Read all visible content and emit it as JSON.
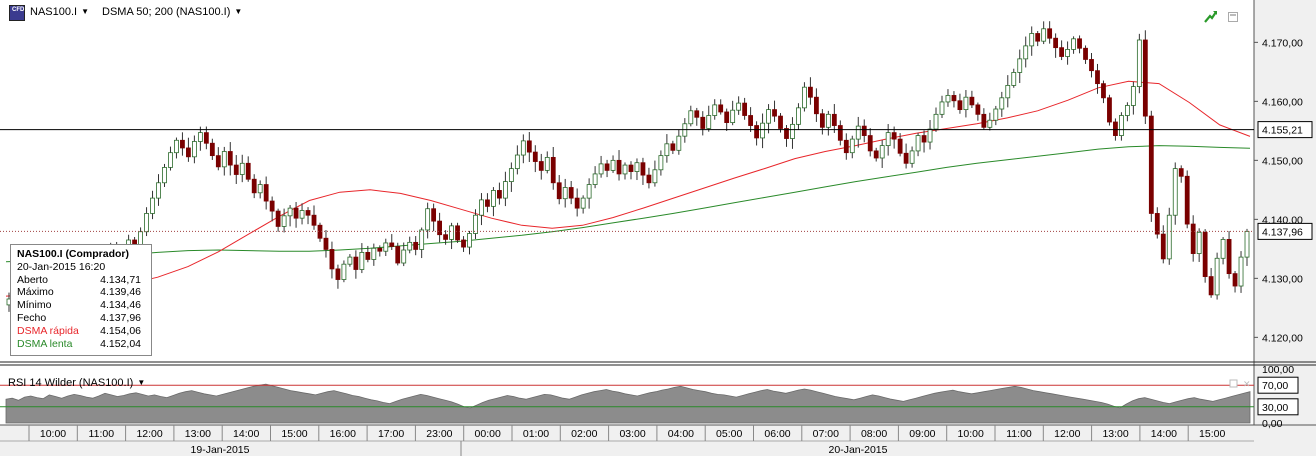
{
  "toolbar": {
    "symbol_icon": "cfd-symbol-icon",
    "symbol": "NAS100.I",
    "indicator": "DSMA 50; 200 (NAS100.I)",
    "corner_icons": [
      "trend-arrow-icon",
      "maximize-icon"
    ]
  },
  "info_box": {
    "title": "NAS100.I (Comprador)",
    "datetime": "20-Jan-2015 16:20",
    "rows": [
      {
        "label": "Aberto",
        "value": "4.134,71"
      },
      {
        "label": "Máximo",
        "value": "4.139,46"
      },
      {
        "label": "Mínimo",
        "value": "4.134,46"
      },
      {
        "label": "Fecho",
        "value": "4.137,96"
      }
    ],
    "fast_label": "DSMA rápida",
    "fast_value": "4.154,06",
    "slow_label": "DSMA lenta",
    "slow_value": "4.152,04"
  },
  "rsi": {
    "label": "RSI 14 Wilder (NAS100.I)",
    "ticks": [
      "100,00",
      "70,00",
      "30,00",
      "0,00"
    ],
    "upper_level": 70,
    "lower_level": 30,
    "series": [
      44,
      46,
      42,
      48,
      50,
      47,
      45,
      52,
      49,
      46,
      50,
      53,
      51,
      48,
      46,
      50,
      55,
      52,
      49,
      51,
      54,
      56,
      53,
      50,
      52,
      49,
      47,
      51,
      55,
      58,
      60,
      57,
      54,
      52,
      50,
      53,
      56,
      59,
      62,
      65,
      68,
      70,
      72,
      69,
      66,
      63,
      60,
      58,
      56,
      54,
      52,
      55,
      58,
      60,
      57,
      54,
      51,
      49,
      46,
      43,
      41,
      38,
      36,
      40,
      44,
      47,
      50,
      53,
      51,
      48,
      45,
      42,
      39,
      35,
      30,
      28,
      33,
      38,
      42,
      45,
      48,
      51,
      49,
      46,
      44,
      47,
      50,
      53,
      52,
      49,
      46,
      44,
      48,
      52,
      55,
      58,
      60,
      62,
      59,
      57,
      54,
      52,
      50,
      53,
      56,
      58,
      61,
      63,
      66,
      68,
      65,
      62,
      60,
      58,
      55,
      53,
      52,
      50,
      48,
      51,
      54,
      57,
      60,
      62,
      59,
      57,
      55,
      58,
      61,
      63,
      61,
      58,
      55,
      52,
      49,
      47,
      45,
      43,
      46,
      49,
      52,
      50,
      47,
      44,
      42,
      40,
      43,
      46,
      49,
      52,
      55,
      57,
      59,
      61,
      58,
      56,
      54,
      56,
      58,
      60,
      62,
      64,
      66,
      68,
      66,
      63,
      60,
      58,
      56,
      54,
      52,
      50,
      48,
      46,
      44,
      42,
      40,
      38,
      35,
      31,
      28,
      35,
      41,
      45,
      47,
      44,
      41,
      38,
      36,
      39,
      42,
      45,
      47,
      44,
      42,
      40,
      43,
      46,
      49,
      52,
      55,
      58
    ]
  },
  "chart_data": {
    "type": "candlestick",
    "symbol": "NAS100.I",
    "interval_minutes": 10,
    "y_ticks": [
      "4.120,00",
      "4.130,00",
      "4.140,00",
      "4.150,00",
      "4.160,00",
      "4.170,00"
    ],
    "ylim": [
      4116.5,
      4176.5
    ],
    "horizontal_line": {
      "value": 4155.21,
      "label": "4.155,21"
    },
    "last_price": {
      "value": 4137.96,
      "label": "4.137,96"
    },
    "x_ticks": [
      "10:00",
      "11:00",
      "12:00",
      "13:00",
      "14:00",
      "15:00",
      "16:00",
      "17:00",
      "23:00",
      "00:00",
      "01:00",
      "02:00",
      "03:00",
      "04:00",
      "05:00",
      "06:00",
      "07:00",
      "08:00",
      "09:00",
      "10:00",
      "11:00",
      "12:00",
      "13:00",
      "14:00",
      "15:00"
    ],
    "date_labels": [
      "19-Jan-2015",
      "20-Jan-2015"
    ],
    "close": [
      4126.5,
      4128.2,
      4127.1,
      4130.3,
      4131.8,
      4130.9,
      4132.5,
      4131.2,
      4133.0,
      4134.4,
      4133.1,
      4132.0,
      4130.6,
      4131.5,
      4129.8,
      4130.4,
      4132.6,
      4135.0,
      4133.9,
      4134.8,
      4136.5,
      4135.2,
      4137.9,
      4141.0,
      4143.6,
      4146.2,
      4148.8,
      4151.3,
      4153.4,
      4152.1,
      4150.6,
      4153.2,
      4154.7,
      4152.9,
      4150.8,
      4148.9,
      4151.5,
      4149.2,
      4147.6,
      4149.5,
      4146.8,
      4144.5,
      4145.9,
      4143.1,
      4141.4,
      4138.8,
      4140.6,
      4141.9,
      4140.2,
      4141.5,
      4140.7,
      4139.0,
      4136.8,
      4134.9,
      4131.6,
      4129.8,
      4132.4,
      4133.6,
      4131.5,
      4134.4,
      4133.2,
      4135.1,
      4134.6,
      4136.0,
      4135.4,
      4132.6,
      4134.8,
      4136.1,
      4134.9,
      4138.2,
      4141.8,
      4139.7,
      4137.4,
      4136.6,
      4138.9,
      4136.5,
      4135.3,
      4137.6,
      4140.7,
      4143.3,
      4142.2,
      4144.9,
      4143.6,
      4146.4,
      4148.6,
      4150.9,
      4153.3,
      4151.4,
      4149.8,
      4148.3,
      4150.5,
      4146.2,
      4143.5,
      4145.4,
      4143.6,
      4141.9,
      4143.6,
      4145.9,
      4147.7,
      4149.4,
      4148.3,
      4150.0,
      4147.7,
      4149.2,
      4148.1,
      4149.6,
      4147.5,
      4146.2,
      4148.4,
      4150.8,
      4152.8,
      4151.7,
      4154.1,
      4156.2,
      4158.4,
      4157.3,
      4155.4,
      4157.6,
      4159.4,
      4158.2,
      4156.4,
      4158.5,
      4159.7,
      4157.6,
      4155.9,
      4153.8,
      4156.3,
      4158.6,
      4157.5,
      4155.4,
      4153.7,
      4156.1,
      4158.9,
      4162.4,
      4160.7,
      4157.9,
      4155.6,
      4157.8,
      4155.9,
      4153.4,
      4151.3,
      4153.6,
      4155.8,
      4154.2,
      4151.6,
      4150.4,
      4152.5,
      4154.7,
      4153.6,
      4151.2,
      4149.5,
      4151.6,
      4154.2,
      4153.1,
      4155.3,
      4157.8,
      4159.9,
      4161.0,
      4160.1,
      4158.6,
      4160.7,
      4159.4,
      4157.8,
      4155.6,
      4156.8,
      4158.7,
      4160.6,
      4162.7,
      4164.9,
      4167.2,
      4169.4,
      4171.5,
      4170.2,
      4172.3,
      4170.7,
      4169.1,
      4167.6,
      4168.8,
      4170.6,
      4169.0,
      4167.1,
      4165.2,
      4163.0,
      4160.6,
      4156.5,
      4154.2,
      4157.6,
      4159.3,
      4162.5,
      4170.4,
      4157.5,
      4141.0,
      4137.5,
      4133.3,
      4140.7,
      4148.6,
      4147.3,
      4139.2,
      4134.2,
      4137.8,
      4130.3,
      4127.2,
      4133.4,
      4136.6,
      4130.8,
      4128.7,
      4133.6,
      4137.96
    ],
    "fast_ma_label": "DSMA rápida",
    "fast_ma": [
      4127.0,
      4127.2,
      4127.6,
      4128.2,
      4129.0,
      4130.2,
      4132.0,
      4134.5,
      4137.5,
      4140.5,
      4143.2,
      4144.6,
      4145.0,
      4144.4,
      4143.2,
      4141.7,
      4140.2,
      4139.0,
      4138.5,
      4139.0,
      4140.3,
      4141.9,
      4143.6,
      4145.3,
      4147.0,
      4148.6,
      4150.3,
      4151.5,
      4152.5,
      4153.6,
      4154.6,
      4155.4,
      4156.2,
      4157.2,
      4158.4,
      4160.2,
      4162.3,
      4163.4,
      4163.0,
      4159.8,
      4156.0,
      4154.06
    ],
    "slow_ma_label": "DSMA lenta",
    "slow_ma": [
      4132.8,
      4133.0,
      4133.3,
      4133.6,
      4134.0,
      4134.4,
      4134.7,
      4134.8,
      4134.7,
      4134.6,
      4134.6,
      4134.8,
      4135.1,
      4135.5,
      4135.9,
      4136.3,
      4136.8,
      4137.3,
      4137.9,
      4138.6,
      4139.4,
      4140.2,
      4141.0,
      4141.9,
      4142.8,
      4143.7,
      4144.6,
      4145.5,
      4146.4,
      4147.2,
      4148.0,
      4148.8,
      4149.5,
      4150.1,
      4150.7,
      4151.3,
      4151.9,
      4152.3,
      4152.5,
      4152.4,
      4152.2,
      4152.04
    ]
  },
  "colors": {
    "candle_body": "#7a0000",
    "candle_wick": "#333333",
    "fast_ma": "#e8262b",
    "slow_ma": "#2a8a2a",
    "rsi_fill": "#8c8c8c",
    "rsi_upper_line": "#cc3333",
    "rsi_lower_line": "#2a8a2a",
    "axis_bg": "#f0f0f0"
  }
}
